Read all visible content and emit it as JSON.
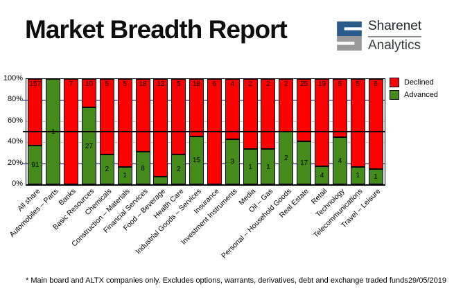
{
  "header": {
    "title": "Market Breadth Report",
    "logo": {
      "line1": "Sharenet",
      "line2": "Analytics",
      "mark_blue": "#2A5A8A",
      "mark_gray": "#9A9A9A"
    }
  },
  "chart_data": {
    "type": "bar",
    "stacked": true,
    "normalized": "percent_of_total",
    "title": "Market Breadth Report",
    "categories": [
      "All share",
      "Automobiles – Parts",
      "Banks",
      "Basic Resources",
      "Chemicals",
      "Construction – Materials",
      "Financial Services",
      "Food – Beverage",
      "Health Care",
      "Industrial Goods – Services",
      "Insurance",
      "Investment Instruments",
      "Media",
      "Oil – Gas",
      "Personal – Household Goods",
      "Real Estate",
      "Retail",
      "Technology",
      "Telecommunications",
      "Travel – Leisure"
    ],
    "series": [
      {
        "name": "Declined",
        "color": "#FF0000",
        "values": [
          157,
          0,
          7,
          10,
          5,
          5,
          18,
          13,
          5,
          18,
          6,
          4,
          2,
          2,
          2,
          25,
          19,
          5,
          5,
          6
        ]
      },
      {
        "name": "Advanced",
        "color": "#448B1B",
        "values": [
          91,
          1,
          0,
          27,
          2,
          1,
          8,
          1,
          2,
          15,
          0,
          3,
          1,
          1,
          2,
          17,
          4,
          4,
          1,
          1
        ]
      }
    ],
    "y_axis": {
      "min": 0,
      "max": 100,
      "tick_step": 20,
      "tick_labels": [
        "0%",
        "20%",
        "40%",
        "60%",
        "80%",
        "100%"
      ]
    },
    "gridlines": [
      {
        "y": 20,
        "color": "#000080"
      },
      {
        "y": 40,
        "color": "#C0C0C0"
      },
      {
        "y": 50,
        "color": "#000000",
        "over_bars": true
      },
      {
        "y": 60,
        "color": "#C0C0C0"
      },
      {
        "y": 80,
        "color": "#000080"
      }
    ],
    "legend_position": "right-top",
    "advanced_label_min_pct": 10
  },
  "footer": {
    "note": "* Main board and ALTX companies only. Excludes options, warrants, derivatives, debt and exchange traded funds",
    "date": "29/05/2019"
  }
}
